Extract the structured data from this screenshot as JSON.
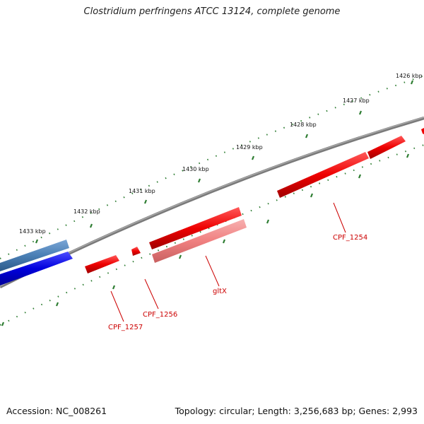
{
  "title": "Clostridium perfringens ATCC 13124, complete genome",
  "footer": {
    "accession": "Accession: NC_008261",
    "stats": "Topology: circular; Length: 3,256,683 bp; Genes: 2,993"
  },
  "colors": {
    "backbone": "#808080",
    "tick": "#2e7d32",
    "cds_red": "#ee0000",
    "cds_light": "#f08080",
    "cds_blue": "#0000dd",
    "cds_steel": "#4a7fb5",
    "label": "#cc0000"
  },
  "ticks": [
    {
      "label": "1426 kbp"
    },
    {
      "label": "1427 kbp"
    },
    {
      "label": "1428 kbp"
    },
    {
      "label": "1429 kbp"
    },
    {
      "label": "1430 kbp"
    },
    {
      "label": "1431 kbp"
    },
    {
      "label": "1432 kbp"
    },
    {
      "label": "1433 kbp"
    }
  ],
  "genes": [
    {
      "label": "CPF_1254"
    },
    {
      "label": "gltX"
    },
    {
      "label": "CPF_1256"
    },
    {
      "label": "CPF_1257"
    }
  ]
}
